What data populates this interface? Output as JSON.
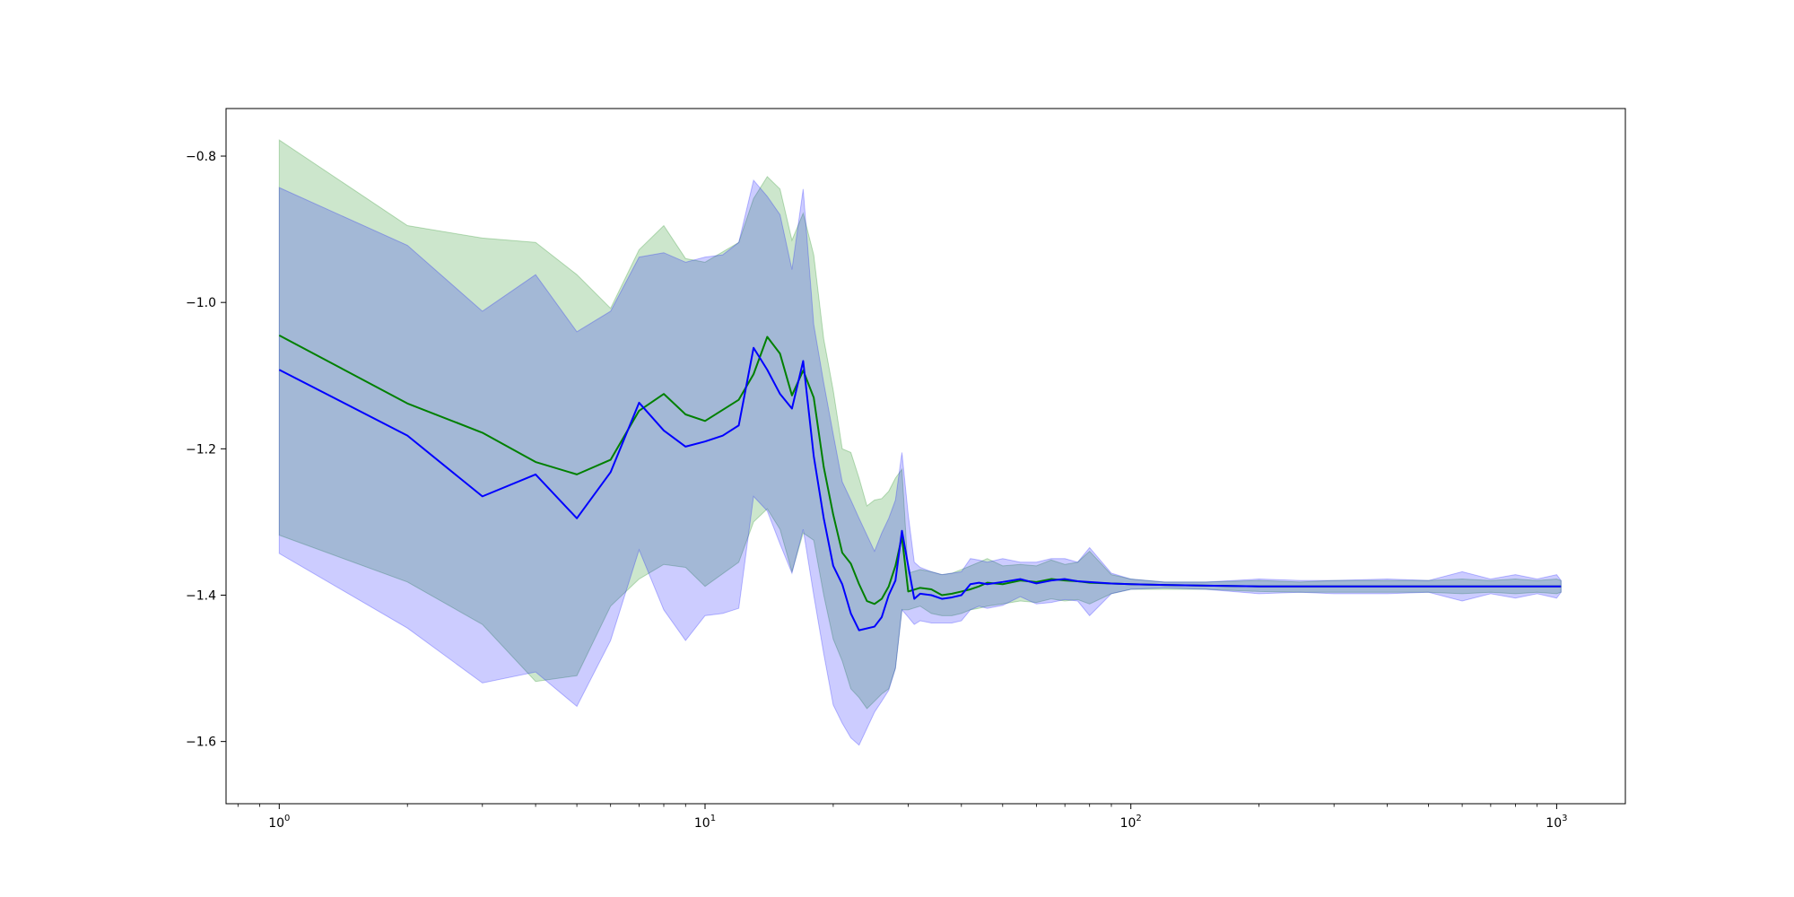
{
  "chart_data": {
    "type": "line",
    "title": "",
    "xlabel": "",
    "ylabel": "",
    "x_scale": "log",
    "xlim": [
      0.75,
      1450
    ],
    "ylim": [
      -1.685,
      -0.735
    ],
    "grid": false,
    "legend": "none",
    "x_ticks": [
      {
        "value": 1,
        "base": "10",
        "exp": "0"
      },
      {
        "value": 10,
        "base": "10",
        "exp": "1"
      },
      {
        "value": 100,
        "base": "10",
        "exp": "2"
      },
      {
        "value": 1000,
        "base": "10",
        "exp": "3"
      }
    ],
    "y_ticks": [
      {
        "value": -0.8,
        "label": "−0.8"
      },
      {
        "value": -1.0,
        "label": "−1.0"
      },
      {
        "value": -1.2,
        "label": "−1.2"
      },
      {
        "value": -1.4,
        "label": "−1.4"
      },
      {
        "value": -1.6,
        "label": "−1.6"
      }
    ],
    "series": [
      {
        "color": "#008000",
        "band_color": "#008000",
        "band_opacity": 0.2,
        "x": [
          1,
          2,
          3,
          4,
          5,
          6,
          7,
          8,
          9,
          10,
          12,
          13,
          14,
          15,
          16,
          17,
          18,
          19,
          20,
          21,
          22,
          23,
          24,
          25,
          26,
          27,
          28,
          29,
          30,
          32,
          34,
          36,
          38,
          40,
          42,
          44,
          46,
          50,
          55,
          60,
          65,
          70,
          75,
          80,
          90,
          100,
          120,
          150,
          200,
          250,
          300,
          400,
          500,
          600,
          700,
          800,
          900,
          1000,
          1024
        ],
        "values": [
          -1.045,
          -1.138,
          -1.178,
          -1.218,
          -1.235,
          -1.215,
          -1.148,
          -1.125,
          -1.153,
          -1.162,
          -1.133,
          -1.098,
          -1.047,
          -1.07,
          -1.127,
          -1.093,
          -1.13,
          -1.225,
          -1.29,
          -1.342,
          -1.357,
          -1.385,
          -1.408,
          -1.412,
          -1.405,
          -1.388,
          -1.36,
          -1.32,
          -1.395,
          -1.39,
          -1.392,
          -1.4,
          -1.398,
          -1.395,
          -1.392,
          -1.388,
          -1.383,
          -1.385,
          -1.38,
          -1.382,
          -1.378,
          -1.38,
          -1.381,
          -1.383,
          -1.384,
          -1.385,
          -1.386,
          -1.387,
          -1.388,
          -1.388,
          -1.388,
          -1.388,
          -1.388,
          -1.388,
          -1.388,
          -1.388,
          -1.388,
          -1.388,
          -1.388
        ],
        "upper": [
          -0.778,
          -0.895,
          -0.912,
          -0.918,
          -0.962,
          -1.008,
          -0.928,
          -0.895,
          -0.94,
          -0.945,
          -0.918,
          -0.858,
          -0.828,
          -0.845,
          -0.915,
          -0.878,
          -0.935,
          -1.05,
          -1.12,
          -1.2,
          -1.205,
          -1.24,
          -1.278,
          -1.27,
          -1.268,
          -1.258,
          -1.24,
          -1.228,
          -1.37,
          -1.365,
          -1.368,
          -1.372,
          -1.37,
          -1.365,
          -1.36,
          -1.355,
          -1.35,
          -1.36,
          -1.358,
          -1.36,
          -1.352,
          -1.358,
          -1.355,
          -1.34,
          -1.372,
          -1.378,
          -1.382,
          -1.382,
          -1.38,
          -1.382,
          -1.38,
          -1.38,
          -1.38,
          -1.378,
          -1.38,
          -1.378,
          -1.38,
          -1.378,
          -1.38
        ],
        "lower": [
          -1.318,
          -1.382,
          -1.44,
          -1.518,
          -1.51,
          -1.415,
          -1.378,
          -1.358,
          -1.362,
          -1.388,
          -1.355,
          -1.3,
          -1.282,
          -1.31,
          -1.368,
          -1.315,
          -1.325,
          -1.4,
          -1.46,
          -1.49,
          -1.528,
          -1.54,
          -1.555,
          -1.545,
          -1.535,
          -1.528,
          -1.5,
          -1.42,
          -1.42,
          -1.415,
          -1.425,
          -1.428,
          -1.428,
          -1.425,
          -1.42,
          -1.418,
          -1.415,
          -1.412,
          -1.408,
          -1.41,
          -1.405,
          -1.408,
          -1.406,
          -1.412,
          -1.398,
          -1.392,
          -1.392,
          -1.392,
          -1.395,
          -1.396,
          -1.396,
          -1.396,
          -1.396,
          -1.398,
          -1.396,
          -1.398,
          -1.396,
          -1.398,
          -1.396
        ]
      },
      {
        "color": "#0000ff",
        "band_color": "#0000ff",
        "band_opacity": 0.2,
        "x": [
          1,
          2,
          3,
          4,
          5,
          6,
          7,
          8,
          9,
          10,
          11,
          12,
          13,
          14,
          15,
          16,
          17,
          18,
          19,
          20,
          21,
          22,
          23,
          25,
          26,
          27,
          28,
          29,
          30,
          31,
          32,
          34,
          36,
          38,
          40,
          42,
          44,
          46,
          50,
          55,
          60,
          65,
          70,
          75,
          80,
          90,
          100,
          120,
          150,
          200,
          250,
          300,
          400,
          500,
          600,
          700,
          800,
          900,
          1000,
          1024
        ],
        "values": [
          -1.092,
          -1.182,
          -1.265,
          -1.235,
          -1.295,
          -1.232,
          -1.137,
          -1.175,
          -1.197,
          -1.19,
          -1.182,
          -1.168,
          -1.062,
          -1.092,
          -1.125,
          -1.145,
          -1.08,
          -1.21,
          -1.295,
          -1.36,
          -1.385,
          -1.425,
          -1.448,
          -1.443,
          -1.43,
          -1.4,
          -1.38,
          -1.312,
          -1.36,
          -1.405,
          -1.398,
          -1.4,
          -1.405,
          -1.403,
          -1.4,
          -1.385,
          -1.383,
          -1.385,
          -1.382,
          -1.378,
          -1.384,
          -1.38,
          -1.378,
          -1.381,
          -1.382,
          -1.384,
          -1.385,
          -1.386,
          -1.387,
          -1.388,
          -1.388,
          -1.388,
          -1.388,
          -1.388,
          -1.388,
          -1.388,
          -1.388,
          -1.388,
          -1.388,
          -1.388
        ],
        "upper": [
          -0.843,
          -0.922,
          -1.012,
          -0.962,
          -1.04,
          -1.012,
          -0.938,
          -0.932,
          -0.945,
          -0.938,
          -0.935,
          -0.918,
          -0.833,
          -0.855,
          -0.88,
          -0.955,
          -0.845,
          -1.03,
          -1.11,
          -1.18,
          -1.245,
          -1.27,
          -1.295,
          -1.34,
          -1.315,
          -1.295,
          -1.27,
          -1.205,
          -1.29,
          -1.355,
          -1.362,
          -1.368,
          -1.372,
          -1.37,
          -1.368,
          -1.35,
          -1.352,
          -1.355,
          -1.35,
          -1.355,
          -1.355,
          -1.35,
          -1.35,
          -1.355,
          -1.335,
          -1.37,
          -1.378,
          -1.382,
          -1.382,
          -1.378,
          -1.38,
          -1.38,
          -1.378,
          -1.38,
          -1.368,
          -1.378,
          -1.372,
          -1.378,
          -1.372,
          -1.38
        ],
        "lower": [
          -1.343,
          -1.445,
          -1.52,
          -1.505,
          -1.552,
          -1.462,
          -1.338,
          -1.42,
          -1.462,
          -1.428,
          -1.425,
          -1.418,
          -1.265,
          -1.285,
          -1.33,
          -1.37,
          -1.31,
          -1.4,
          -1.48,
          -1.55,
          -1.575,
          -1.595,
          -1.605,
          -1.56,
          -1.545,
          -1.53,
          -1.5,
          -1.42,
          -1.43,
          -1.44,
          -1.435,
          -1.438,
          -1.438,
          -1.438,
          -1.435,
          -1.42,
          -1.415,
          -1.418,
          -1.414,
          -1.402,
          -1.412,
          -1.41,
          -1.406,
          -1.408,
          -1.428,
          -1.398,
          -1.392,
          -1.39,
          -1.392,
          -1.398,
          -1.396,
          -1.398,
          -1.398,
          -1.396,
          -1.408,
          -1.398,
          -1.404,
          -1.398,
          -1.404,
          -1.396
        ]
      }
    ]
  }
}
